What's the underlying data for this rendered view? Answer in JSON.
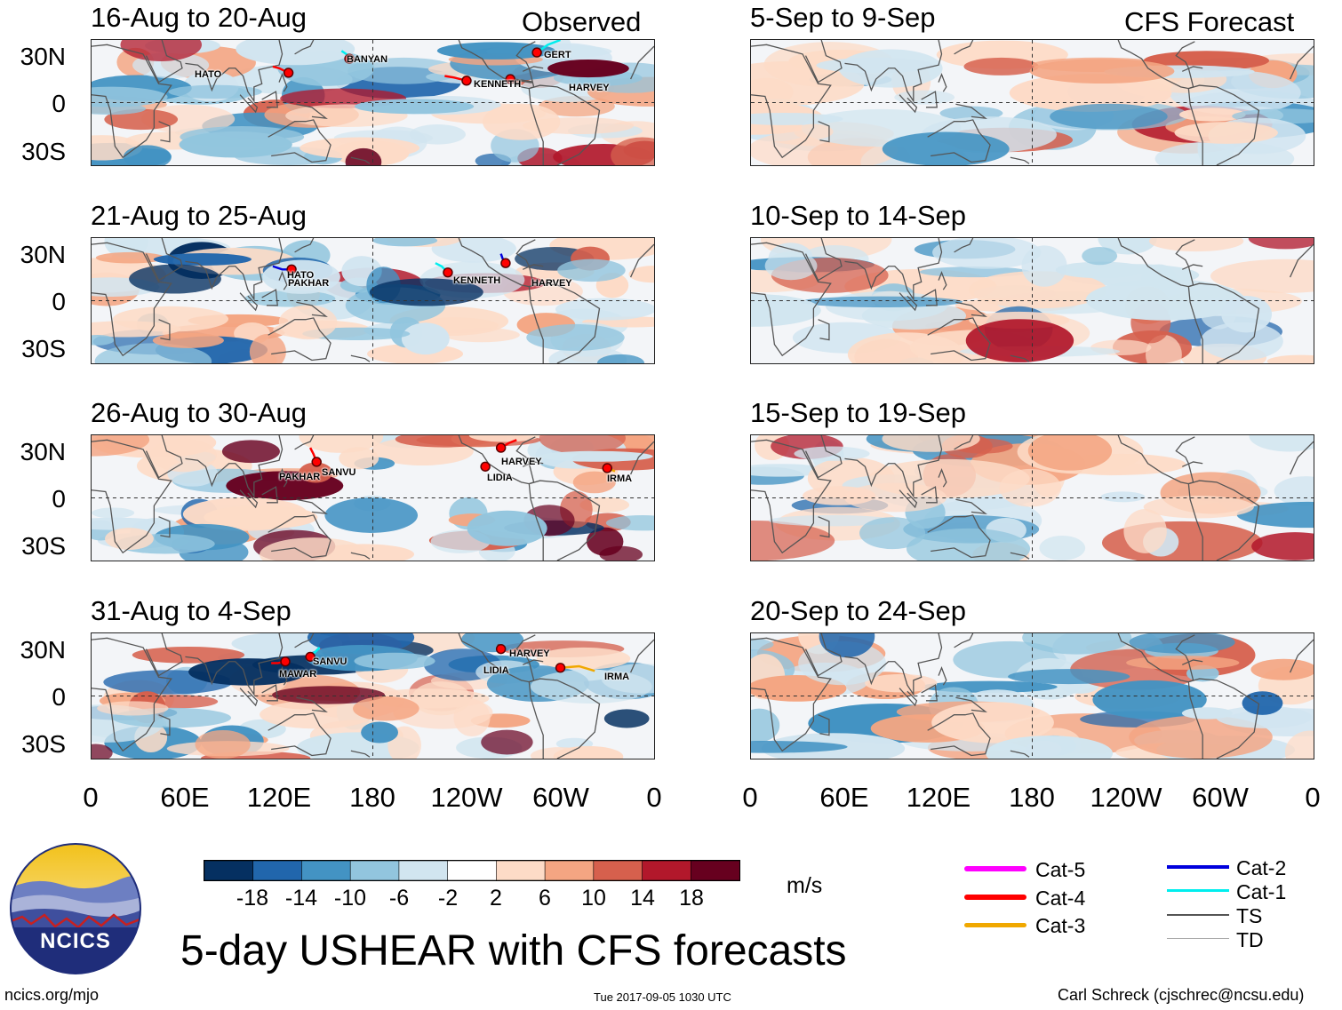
{
  "column_labels": {
    "observed": "Observed",
    "forecast": "CFS Forecast"
  },
  "colors": {
    "land_outline": "#555555",
    "dark_red": "#67001f",
    "red": "#b2182b",
    "mid_red": "#d6604d",
    "light_red": "#f4a582",
    "pale_red": "#fddbc7",
    "dark_blue": "#053061",
    "blue": "#2166ac",
    "mid_blue": "#4393c3",
    "light_blue": "#92c5de",
    "pale_blue": "#d1e5f0",
    "track_cat5": "#ff00ff",
    "track_cat4": "#ff0000",
    "track_cat3": "#f0a800",
    "track_cat2": "#0000dd",
    "track_cat1": "#00eeee",
    "track_ts": "#555555",
    "track_td": "#aaaaaa"
  },
  "panels": [
    {
      "title": "16-Aug to 20-Aug",
      "column": "observed",
      "storms": [
        "HATO",
        "BANYAN",
        "GERT",
        "KENNETH",
        "HARVEY"
      ]
    },
    {
      "title": "21-Aug to 25-Aug",
      "column": "observed",
      "storms": [
        "HATO",
        "PAKHAR",
        "KENNETH",
        "HARVEY"
      ]
    },
    {
      "title": "26-Aug to 30-Aug",
      "column": "observed",
      "storms": [
        "SANVU",
        "PAKHAR",
        "HARVEY",
        "LIDIA",
        "IRMA"
      ]
    },
    {
      "title": "31-Aug to 4-Sep",
      "column": "observed",
      "storms": [
        "SANVU",
        "MAWAR",
        "LIDIA",
        "HARVEY",
        "IRMA"
      ]
    },
    {
      "title": "5-Sep to 9-Sep",
      "column": "forecast",
      "storms": []
    },
    {
      "title": "10-Sep to 14-Sep",
      "column": "forecast",
      "storms": []
    },
    {
      "title": "15-Sep to 19-Sep",
      "column": "forecast",
      "storms": []
    },
    {
      "title": "20-Sep to 24-Sep",
      "column": "forecast",
      "storms": []
    }
  ],
  "lat_labels": [
    "30N",
    "0",
    "30S"
  ],
  "lon_labels": [
    "0",
    "60E",
    "120E",
    "180",
    "120W",
    "60W",
    "0"
  ],
  "colorbar": {
    "ticks": [
      "-18",
      "-14",
      "-10",
      "-6",
      "-2",
      "2",
      "6",
      "10",
      "14",
      "18"
    ],
    "colors": [
      "#053061",
      "#2166ac",
      "#4393c3",
      "#92c5de",
      "#d1e5f0",
      "#ffffff",
      "#fddbc7",
      "#f4a582",
      "#d6604d",
      "#b2182b",
      "#67001f"
    ],
    "units": "m/s"
  },
  "legend": {
    "left": [
      {
        "label": "Cat-5",
        "color": "#ff00ff"
      },
      {
        "label": "Cat-4",
        "color": "#ff0000"
      },
      {
        "label": "Cat-3",
        "color": "#f0a800"
      }
    ],
    "right": [
      {
        "label": "Cat-2",
        "color": "#0000dd"
      },
      {
        "label": "Cat-1",
        "color": "#00eeee"
      },
      {
        "label": "TS",
        "color": "#555555"
      },
      {
        "label": "TD",
        "color": "#aaaaaa"
      }
    ]
  },
  "main_title": "5-day USHEAR with CFS forecasts",
  "logo_text": "NCICS",
  "footer": {
    "left": "ncics.org/mjo",
    "center": "Tue 2017-09-05 1030 UTC",
    "right": "Carl Schreck (cjschrec@ncsu.edu)"
  }
}
